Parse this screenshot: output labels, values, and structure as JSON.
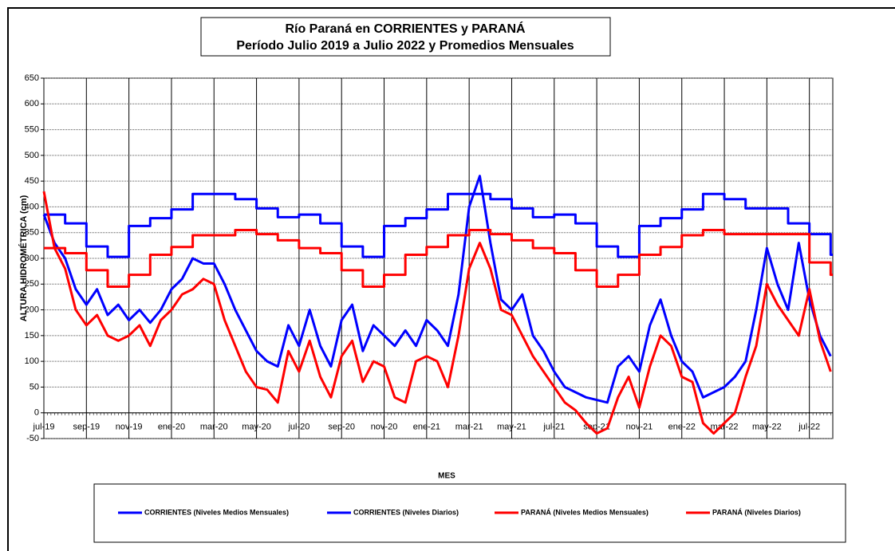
{
  "chart_data": {
    "type": "line",
    "title": "Río Paraná en CORRIENTES y PARANÁ",
    "subtitle": "Período Julio 2019 a Julio 2022 y Promedios Mensuales",
    "y_label": "ALTURA HIDROMÉTRICA (cm)",
    "x_label": "MES",
    "xlim": [
      0,
      37.1
    ],
    "xticks": [
      {
        "value": 0,
        "label": "jul-19"
      },
      {
        "value": 2,
        "label": "sep-19"
      },
      {
        "value": 4,
        "label": "nov-19"
      },
      {
        "value": 6,
        "label": "ene-20"
      },
      {
        "value": 8,
        "label": "mar-20"
      },
      {
        "value": 10,
        "label": "may-20"
      },
      {
        "value": 12,
        "label": "jul-20"
      },
      {
        "value": 14,
        "label": "sep-20"
      },
      {
        "value": 16,
        "label": "nov-20"
      },
      {
        "value": 18,
        "label": "ene-21"
      },
      {
        "value": 20,
        "label": "mar-21"
      },
      {
        "value": 22,
        "label": "may-21"
      },
      {
        "value": 24,
        "label": "jul-21"
      },
      {
        "value": 26,
        "label": "sep-21"
      },
      {
        "value": 28,
        "label": "nov-21"
      },
      {
        "value": 30,
        "label": "ene-22"
      },
      {
        "value": 32,
        "label": "mar-22"
      },
      {
        "value": 34,
        "label": "may-22"
      },
      {
        "value": 36,
        "label": "jul-22"
      }
    ],
    "ylim": [
      -50,
      650
    ],
    "yticks": [
      -50,
      0,
      50,
      100,
      150,
      200,
      250,
      300,
      350,
      400,
      450,
      500,
      550,
      600,
      650
    ],
    "grid": true,
    "series": [
      {
        "name": "CORRIENTES (Niveles Medios Mensuales)",
        "color": "#0000ff",
        "step": true,
        "x": [
          0,
          1,
          2,
          3,
          4,
          5,
          6,
          7,
          8,
          9,
          10,
          11,
          12,
          13,
          14,
          15,
          16,
          17,
          18,
          19,
          20,
          21,
          22,
          23,
          24,
          25,
          26,
          27,
          28,
          29,
          30,
          31,
          32,
          33,
          34,
          35,
          36,
          37
        ],
        "values": [
          385,
          368,
          323,
          303,
          363,
          378,
          395,
          425,
          425,
          415,
          397,
          380,
          385,
          368,
          323,
          303,
          363,
          378,
          395,
          425,
          425,
          415,
          397,
          380,
          385,
          368,
          323,
          303,
          363,
          378,
          395,
          425,
          415,
          397,
          397,
          368,
          347,
          307
        ]
      },
      {
        "name": "CORRIENTES (Niveles Diarios)",
        "color": "#0000ff",
        "step": false,
        "x": [
          0,
          0.5,
          1,
          1.5,
          2,
          2.5,
          3,
          3.5,
          4,
          4.5,
          5,
          5.5,
          6,
          6.5,
          7,
          7.5,
          8,
          8.5,
          9,
          9.5,
          10,
          10.5,
          11,
          11.5,
          12,
          12.5,
          13,
          13.5,
          14,
          14.5,
          15,
          15.5,
          16,
          16.5,
          17,
          17.5,
          18,
          18.5,
          19,
          19.5,
          20,
          20.5,
          21,
          21.5,
          22,
          22.5,
          23,
          23.5,
          24,
          24.5,
          25,
          25.5,
          26,
          26.5,
          27,
          27.5,
          28,
          28.5,
          29,
          29.5,
          30,
          30.5,
          31,
          31.5,
          32,
          32.5,
          33,
          33.5,
          34,
          34.5,
          35,
          35.5,
          36,
          36.5,
          37
        ],
        "values": [
          385,
          330,
          300,
          240,
          210,
          240,
          190,
          210,
          180,
          200,
          175,
          200,
          240,
          260,
          300,
          290,
          290,
          250,
          200,
          160,
          120,
          100,
          90,
          170,
          130,
          200,
          130,
          90,
          180,
          210,
          120,
          170,
          150,
          130,
          160,
          130,
          180,
          160,
          130,
          230,
          400,
          460,
          330,
          220,
          200,
          230,
          150,
          120,
          80,
          50,
          40,
          30,
          25,
          20,
          90,
          110,
          80,
          170,
          220,
          150,
          100,
          80,
          30,
          40,
          50,
          70,
          100,
          200,
          320,
          250,
          200,
          330,
          220,
          150,
          110
        ]
      },
      {
        "name": "PARANÁ (Niveles Medios Mensuales)",
        "color": "#ff0000",
        "step": true,
        "x": [
          0,
          1,
          2,
          3,
          4,
          5,
          6,
          7,
          8,
          9,
          10,
          11,
          12,
          13,
          14,
          15,
          16,
          17,
          18,
          19,
          20,
          21,
          22,
          23,
          24,
          25,
          26,
          27,
          28,
          29,
          30,
          31,
          32,
          33,
          34,
          35,
          36,
          37
        ],
        "values": [
          320,
          310,
          277,
          245,
          268,
          307,
          322,
          345,
          345,
          355,
          347,
          335,
          320,
          310,
          277,
          245,
          268,
          307,
          322,
          345,
          355,
          347,
          335,
          320,
          310,
          277,
          245,
          268,
          307,
          322,
          345,
          355,
          347,
          347,
          347,
          347,
          292,
          268
        ]
      },
      {
        "name": "PARANÁ (Niveles Diarios)",
        "color": "#ff0000",
        "step": false,
        "x": [
          0,
          0.5,
          1,
          1.5,
          2,
          2.5,
          3,
          3.5,
          4,
          4.5,
          5,
          5.5,
          6,
          6.5,
          7,
          7.5,
          8,
          8.5,
          9,
          9.5,
          10,
          10.5,
          11,
          11.5,
          12,
          12.5,
          13,
          13.5,
          14,
          14.5,
          15,
          15.5,
          16,
          16.5,
          17,
          17.5,
          18,
          18.5,
          19,
          19.5,
          20,
          20.5,
          21,
          21.5,
          22,
          22.5,
          23,
          23.5,
          24,
          24.5,
          25,
          25.5,
          26,
          26.5,
          27,
          27.5,
          28,
          28.5,
          29,
          29.5,
          30,
          30.5,
          31,
          31.5,
          32,
          32.5,
          33,
          33.5,
          34,
          34.5,
          35,
          35.5,
          36,
          36.5,
          37
        ],
        "values": [
          430,
          320,
          280,
          200,
          170,
          190,
          150,
          140,
          150,
          170,
          130,
          180,
          200,
          230,
          240,
          260,
          250,
          180,
          130,
          80,
          50,
          45,
          20,
          120,
          80,
          140,
          70,
          30,
          110,
          140,
          60,
          100,
          90,
          30,
          20,
          100,
          110,
          100,
          50,
          150,
          280,
          330,
          280,
          200,
          190,
          150,
          110,
          80,
          50,
          20,
          5,
          -20,
          -40,
          -30,
          30,
          70,
          10,
          90,
          150,
          130,
          70,
          60,
          -20,
          -40,
          -20,
          0,
          70,
          130,
          250,
          210,
          180,
          150,
          240,
          140,
          80
        ]
      }
    ]
  }
}
